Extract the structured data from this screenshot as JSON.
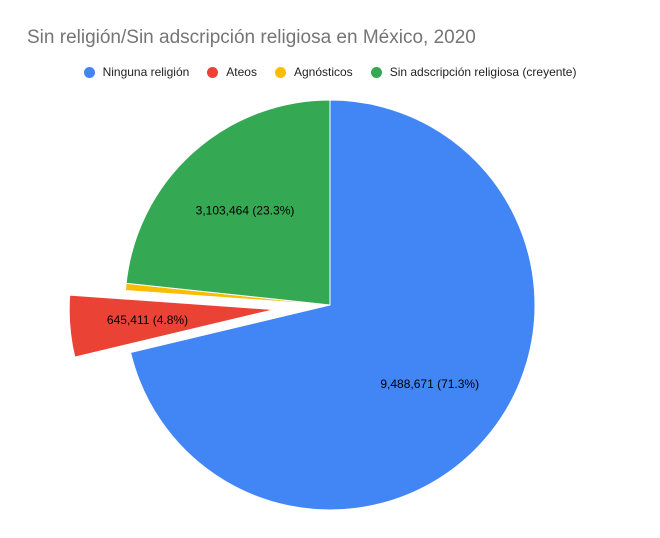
{
  "chart_data": {
    "type": "pie",
    "title": "Sin religión/Sin adscripción religiosa en México, 2020",
    "legend_position": "top",
    "slices": [
      {
        "name": "Ninguna religión",
        "value": 9488671,
        "label": "9,488,671 (71.3%)",
        "color": "#4285F4"
      },
      {
        "name": "Ateos",
        "value": 645411,
        "label": "645,411 (4.8%)",
        "color": "#EA4335",
        "exploded": true
      },
      {
        "name": "Agnósticos",
        "value": 75000,
        "label": "",
        "color": "#FBBC04"
      },
      {
        "name": "Sin adscripción religiosa (creyente)",
        "value": 3103464,
        "label": "3,103,464 (23.3%)",
        "color": "#34A853"
      }
    ]
  }
}
